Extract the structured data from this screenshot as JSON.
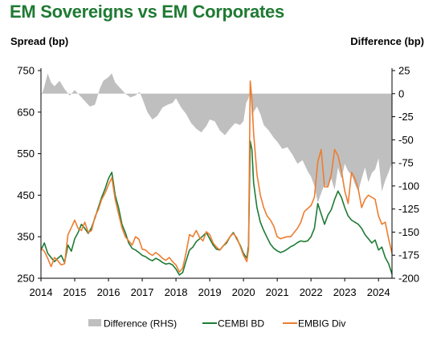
{
  "chart_data": {
    "type": "line",
    "title": "EM Sovereigns vs EM Corporates",
    "ylabel_left": "Spread (bp)",
    "ylabel_right": "Difference (bp)",
    "xlim": [
      2014.0,
      2024.4
    ],
    "ylim_left": [
      250,
      750
    ],
    "ylim_right": [
      -200,
      25
    ],
    "x_ticks": [
      2014,
      2015,
      2016,
      2017,
      2018,
      2019,
      2020,
      2021,
      2022,
      2023,
      2024
    ],
    "y_ticks_left": [
      250,
      350,
      450,
      550,
      650,
      750
    ],
    "y_ticks_right": [
      -200,
      -175,
      -150,
      -125,
      -100,
      -75,
      -50,
      -25,
      0,
      25
    ],
    "legend_position": "bottom",
    "series": [
      {
        "name": "Difference (RHS)",
        "kind": "area",
        "axis": "right",
        "color": "#bfbfbf",
        "x": [
          2014.0,
          2014.08,
          2014.2,
          2014.3,
          2014.4,
          2014.55,
          2014.7,
          2014.85,
          2015.0,
          2015.15,
          2015.3,
          2015.45,
          2015.6,
          2015.75,
          2015.85,
          2016.0,
          2016.1,
          2016.2,
          2016.35,
          2016.5,
          2016.65,
          2016.8,
          2016.92,
          2017.0,
          2017.15,
          2017.3,
          2017.45,
          2017.6,
          2017.75,
          2017.9,
          2018.0,
          2018.15,
          2018.3,
          2018.45,
          2018.6,
          2018.75,
          2018.9,
          2019.0,
          2019.15,
          2019.3,
          2019.45,
          2019.6,
          2019.75,
          2019.9,
          2020.0,
          2020.08,
          2020.15,
          2020.2,
          2020.25,
          2020.3,
          2020.4,
          2020.5,
          2020.6,
          2020.75,
          2020.9,
          2021.0,
          2021.15,
          2021.3,
          2021.45,
          2021.6,
          2021.75,
          2021.9,
          2022.0,
          2022.1,
          2022.2,
          2022.3,
          2022.4,
          2022.5,
          2022.6,
          2022.7,
          2022.8,
          2022.9,
          2023.0,
          2023.1,
          2023.2,
          2023.3,
          2023.4,
          2023.5,
          2023.6,
          2023.7,
          2023.8,
          2023.9,
          2024.0,
          2024.1,
          2024.2,
          2024.3,
          2024.4
        ],
        "values": [
          -3,
          5,
          22,
          12,
          8,
          14,
          5,
          -2,
          4,
          -2,
          -8,
          -14,
          -12,
          6,
          14,
          18,
          22,
          12,
          6,
          0,
          -4,
          -2,
          2,
          -5,
          -20,
          -28,
          -24,
          -15,
          -12,
          -10,
          -5,
          -15,
          -22,
          -32,
          -38,
          -42,
          -35,
          -28,
          -30,
          -40,
          -45,
          -38,
          -32,
          -34,
          -30,
          -10,
          -5,
          2,
          -25,
          -20,
          -14,
          -22,
          -34,
          -40,
          -48,
          -52,
          -60,
          -58,
          -66,
          -76,
          -72,
          -84,
          -90,
          -100,
          -118,
          -108,
          -98,
          -102,
          -92,
          -104,
          -80,
          -92,
          -76,
          -84,
          -88,
          -98,
          -106,
          -92,
          -80,
          -96,
          -86,
          -82,
          -70,
          -106,
          -94,
          -85,
          -75
        ]
      },
      {
        "name": "CEMBI BD",
        "kind": "line",
        "axis": "left",
        "color": "#1e7b35",
        "x": [
          2014.0,
          2014.1,
          2014.2,
          2014.3,
          2014.4,
          2014.5,
          2014.6,
          2014.7,
          2014.8,
          2014.9,
          2015.0,
          2015.1,
          2015.2,
          2015.3,
          2015.4,
          2015.5,
          2015.6,
          2015.7,
          2015.8,
          2015.9,
          2016.0,
          2016.1,
          2016.2,
          2016.3,
          2016.4,
          2016.5,
          2016.6,
          2016.7,
          2016.8,
          2016.9,
          2017.0,
          2017.1,
          2017.2,
          2017.3,
          2017.4,
          2017.5,
          2017.6,
          2017.7,
          2017.8,
          2017.9,
          2018.0,
          2018.1,
          2018.2,
          2018.3,
          2018.4,
          2018.5,
          2018.6,
          2018.7,
          2018.8,
          2018.9,
          2019.0,
          2019.1,
          2019.2,
          2019.3,
          2019.4,
          2019.5,
          2019.6,
          2019.7,
          2019.8,
          2019.9,
          2020.0,
          2020.1,
          2020.15,
          2020.2,
          2020.25,
          2020.3,
          2020.4,
          2020.5,
          2020.6,
          2020.7,
          2020.8,
          2020.9,
          2021.0,
          2021.1,
          2021.2,
          2021.3,
          2021.4,
          2021.5,
          2021.6,
          2021.7,
          2021.8,
          2021.9,
          2022.0,
          2022.1,
          2022.2,
          2022.3,
          2022.4,
          2022.5,
          2022.6,
          2022.7,
          2022.8,
          2022.9,
          2023.0,
          2023.1,
          2023.2,
          2023.3,
          2023.4,
          2023.5,
          2023.6,
          2023.7,
          2023.8,
          2023.9,
          2024.0,
          2024.1,
          2024.2,
          2024.3,
          2024.4
        ],
        "values": [
          318,
          335,
          310,
          300,
          290,
          298,
          305,
          288,
          330,
          315,
          345,
          360,
          380,
          370,
          358,
          372,
          395,
          420,
          445,
          465,
          490,
          505,
          450,
          420,
          380,
          360,
          335,
          322,
          318,
          312,
          305,
          302,
          296,
          292,
          298,
          294,
          288,
          284,
          286,
          282,
          272,
          258,
          264,
          292,
          318,
          325,
          338,
          345,
          352,
          360,
          345,
          330,
          320,
          318,
          328,
          335,
          350,
          360,
          345,
          330,
          310,
          298,
          330,
          580,
          560,
          480,
          420,
          385,
          365,
          348,
          332,
          322,
          316,
          312,
          315,
          320,
          326,
          330,
          336,
          340,
          338,
          340,
          350,
          370,
          430,
          405,
          380,
          402,
          415,
          440,
          460,
          445,
          420,
          400,
          390,
          385,
          380,
          370,
          355,
          345,
          335,
          342,
          318,
          325,
          300,
          285,
          260
        ]
      },
      {
        "name": "EMBIG Div",
        "kind": "line",
        "axis": "left",
        "color": "#ed7d31",
        "x": [
          2014.0,
          2014.1,
          2014.2,
          2014.3,
          2014.4,
          2014.5,
          2014.6,
          2014.7,
          2014.8,
          2014.9,
          2015.0,
          2015.1,
          2015.2,
          2015.3,
          2015.4,
          2015.5,
          2015.6,
          2015.7,
          2015.8,
          2015.9,
          2016.0,
          2016.1,
          2016.2,
          2016.3,
          2016.4,
          2016.5,
          2016.6,
          2016.7,
          2016.8,
          2016.9,
          2017.0,
          2017.1,
          2017.2,
          2017.3,
          2017.4,
          2017.5,
          2017.6,
          2017.7,
          2017.8,
          2017.9,
          2018.0,
          2018.1,
          2018.2,
          2018.3,
          2018.4,
          2018.5,
          2018.6,
          2018.7,
          2018.8,
          2018.9,
          2019.0,
          2019.1,
          2019.2,
          2019.3,
          2019.4,
          2019.5,
          2019.6,
          2019.7,
          2019.8,
          2019.9,
          2020.0,
          2020.1,
          2020.15,
          2020.2,
          2020.25,
          2020.3,
          2020.4,
          2020.5,
          2020.6,
          2020.7,
          2020.8,
          2020.9,
          2021.0,
          2021.1,
          2021.2,
          2021.3,
          2021.4,
          2021.5,
          2021.6,
          2021.7,
          2021.8,
          2021.9,
          2022.0,
          2022.1,
          2022.2,
          2022.3,
          2022.4,
          2022.5,
          2022.6,
          2022.7,
          2022.8,
          2022.9,
          2023.0,
          2023.1,
          2023.2,
          2023.3,
          2023.4,
          2023.5,
          2023.6,
          2023.7,
          2023.8,
          2023.9,
          2024.0,
          2024.1,
          2024.2,
          2024.3,
          2024.4
        ],
        "values": [
          322,
          315,
          298,
          278,
          300,
          292,
          282,
          285,
          355,
          372,
          390,
          370,
          365,
          385,
          360,
          365,
          398,
          415,
          440,
          455,
          475,
          492,
          440,
          405,
          372,
          350,
          340,
          330,
          350,
          344,
          320,
          318,
          310,
          305,
          312,
          306,
          298,
          293,
          300,
          290,
          282,
          265,
          275,
          312,
          355,
          350,
          365,
          348,
          340,
          362,
          355,
          335,
          325,
          318,
          328,
          338,
          350,
          358,
          348,
          328,
          305,
          290,
          320,
          725,
          680,
          600,
          500,
          450,
          420,
          400,
          390,
          375,
          350,
          345,
          348,
          350,
          350,
          360,
          370,
          385,
          410,
          418,
          425,
          445,
          530,
          560,
          470,
          470,
          500,
          560,
          545,
          510,
          460,
          430,
          505,
          490,
          465,
          420,
          440,
          450,
          445,
          440,
          400,
          380,
          385,
          345,
          310
        ]
      }
    ]
  }
}
